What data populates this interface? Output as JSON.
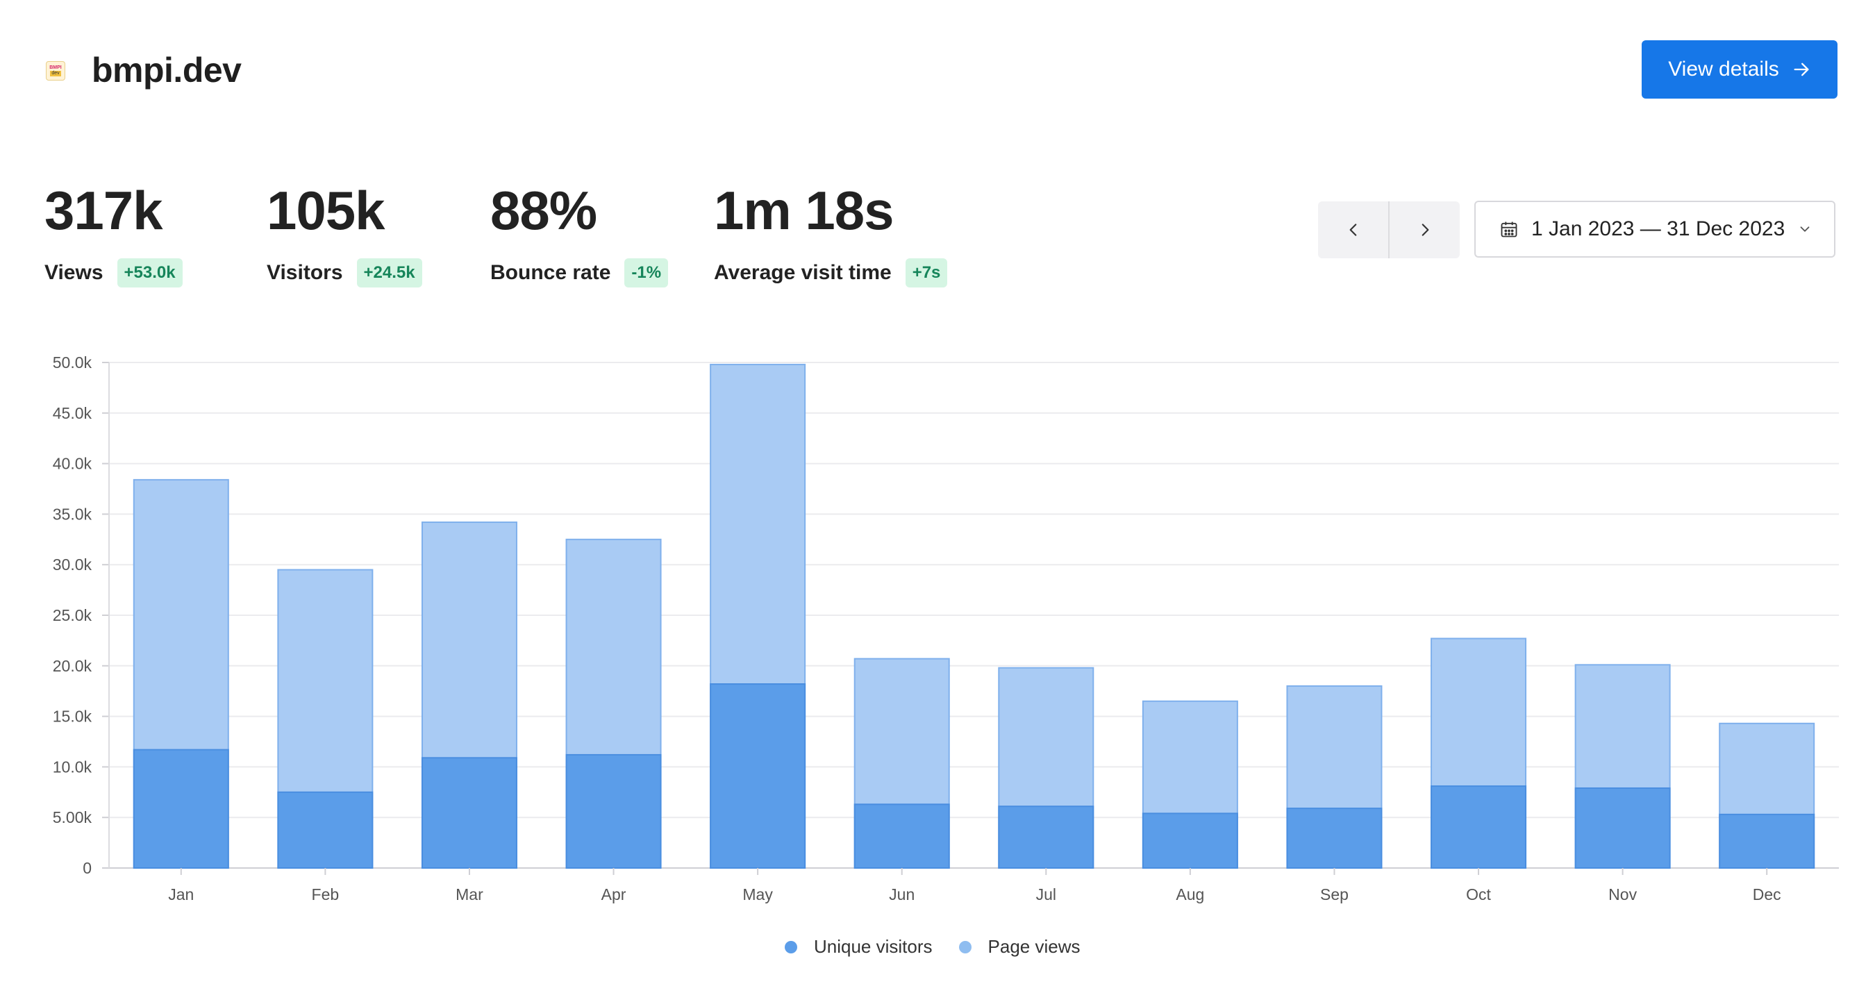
{
  "header": {
    "logo_top": "BMPI",
    "logo_bottom": "dev",
    "title": "bmpi.dev",
    "view_details_label": "View details"
  },
  "stats": [
    {
      "value": "317k",
      "label": "Views",
      "change": "+53.0k"
    },
    {
      "value": "105k",
      "label": "Visitors",
      "change": "+24.5k"
    },
    {
      "value": "88%",
      "label": "Bounce rate",
      "change": "-1%"
    },
    {
      "value": "1m 18s",
      "label": "Average visit time",
      "change": "+7s"
    }
  ],
  "date_range": {
    "label": "1 Jan 2023 — 31 Dec 2023",
    "prev_icon": "chevron-left-icon",
    "next_icon": "chevron-right-icon",
    "calendar_icon": "calendar-icon",
    "dropdown_icon": "chevron-down-icon"
  },
  "colors": {
    "accent": "#1677e8",
    "unique_visitors": "#5b9de9",
    "page_views": "#a9cbf4",
    "badge_text": "#16855a",
    "badge_bg": "#d5f5e3"
  },
  "chart_data": {
    "type": "bar",
    "stacked": "overlay",
    "categories": [
      "Jan",
      "Feb",
      "Mar",
      "Apr",
      "May",
      "Jun",
      "Jul",
      "Aug",
      "Sep",
      "Oct",
      "Nov",
      "Dec"
    ],
    "series": [
      {
        "name": "Unique visitors",
        "color": "#5b9de9",
        "values": [
          11700,
          7500,
          10900,
          11200,
          18200,
          6300,
          6100,
          5400,
          5900,
          8100,
          7900,
          5300
        ]
      },
      {
        "name": "Page views",
        "color": "#a9cbf4",
        "values": [
          38400,
          29500,
          34200,
          32500,
          49800,
          20700,
          19800,
          16500,
          18000,
          22700,
          20100,
          14300
        ]
      }
    ],
    "yticks": [
      "0",
      "5.00k",
      "10.0k",
      "15.0k",
      "20.0k",
      "25.0k",
      "30.0k",
      "35.0k",
      "40.0k",
      "45.0k",
      "50.0k"
    ],
    "ylim": [
      0,
      50000
    ],
    "grid": true,
    "legend_position": "bottom-center"
  }
}
